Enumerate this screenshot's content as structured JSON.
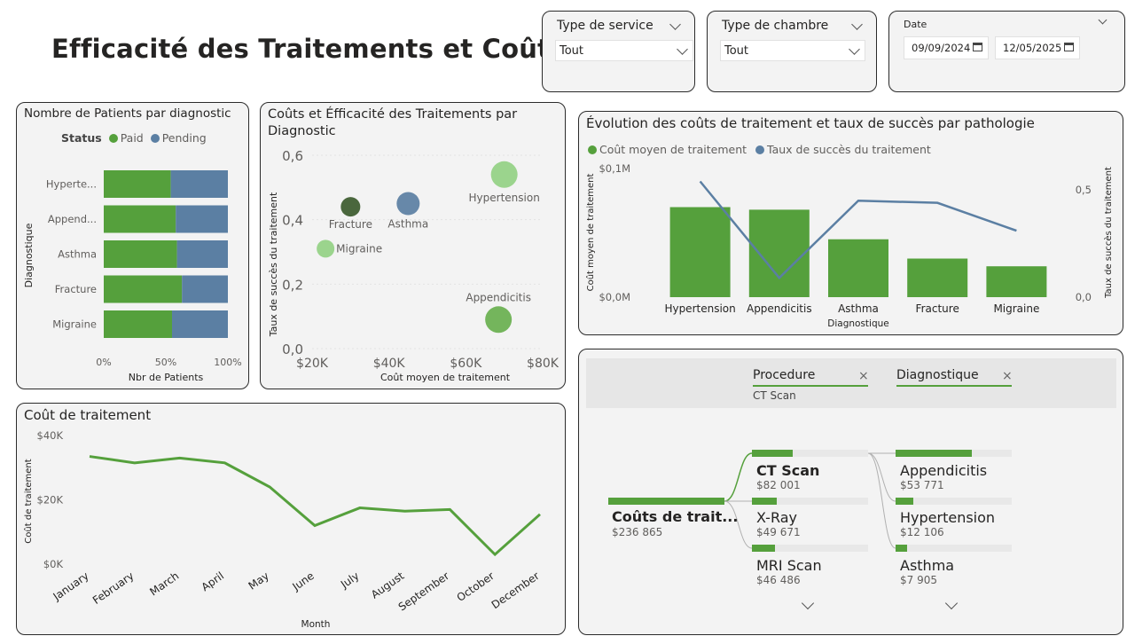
{
  "page": {
    "title": "Efficacité des Traitements et Coûts"
  },
  "filters": {
    "service": {
      "label": "Type de service",
      "value": "Tout"
    },
    "chambre": {
      "label": "Type de chambre",
      "value": "Tout"
    },
    "date": {
      "label": "Date",
      "start": "09/09/2024",
      "end": "12/05/2025"
    }
  },
  "colors": {
    "green": "#55a03c",
    "blue": "#5b7fa3",
    "dark_green": "#3c5b2e",
    "light_green": "#94d184",
    "mid_green": "#69b04f"
  },
  "chart_data": [
    {
      "id": "patients",
      "type": "bar",
      "orientation": "horizontal",
      "stacked": "100%",
      "title": "Nombre de Patients par diagnostic",
      "legend_title": "Status",
      "categories": [
        "Hyperte...",
        "Append...",
        "Asthma",
        "Fracture",
        "Migraine"
      ],
      "series": [
        {
          "name": "Paid",
          "values": [
            0.54,
            0.58,
            0.59,
            0.63,
            0.55
          ]
        },
        {
          "name": "Pending",
          "values": [
            0.46,
            0.42,
            0.41,
            0.37,
            0.45
          ]
        }
      ],
      "xlabel": "Nbr de Patients",
      "ylabel": "Diagnostique",
      "xticks": [
        "0%",
        "50%",
        "100%"
      ]
    },
    {
      "id": "scatter",
      "type": "scatter",
      "title": "Coûts et Éfficacité des Traitements par Diagnostic",
      "points": [
        {
          "label": "Fracture",
          "x": 30000,
          "y": 0.44,
          "color": "#3c5b2e"
        },
        {
          "label": "Asthma",
          "x": 45000,
          "y": 0.45,
          "color": "#5b7fa3"
        },
        {
          "label": "Hypertension",
          "x": 70000,
          "y": 0.54,
          "color": "#94d184"
        },
        {
          "label": "Migraine",
          "x": 23500,
          "y": 0.31,
          "color": "#94d184"
        },
        {
          "label": "Appendicitis",
          "x": 68500,
          "y": 0.09,
          "color": "#69b04f"
        }
      ],
      "xlabel": "Coût moyen de traitement",
      "ylabel": "Taux de succès du traitement",
      "xlim": [
        20000,
        80000
      ],
      "ylim": [
        0,
        0.6
      ],
      "xticks": [
        "$20K",
        "$40K",
        "$60K",
        "$80K"
      ],
      "yticks": [
        "0,0",
        "0,2",
        "0,4",
        "0,6"
      ]
    },
    {
      "id": "combo",
      "type": "bar",
      "title": "Évolution des coûts de traitement et taux de succès par pathologie",
      "categories": [
        "Hypertension",
        "Appendicitis",
        "Asthma",
        "Fracture",
        "Migraine"
      ],
      "series": [
        {
          "name": "Coût moyen de traitement",
          "kind": "bar",
          "values": [
            70000,
            68000,
            45000,
            30000,
            24000
          ]
        },
        {
          "name": "Taux de succès du traitement",
          "kind": "line",
          "values": [
            0.54,
            0.09,
            0.45,
            0.44,
            0.31
          ]
        }
      ],
      "xlabel": "Diagnostique",
      "ylabel": "Coût moyen de traitement",
      "y2label": "Taux de succès du traitement",
      "ylim": [
        0,
        100000
      ],
      "y2lim": [
        0,
        0.6
      ],
      "yticks": [
        "$0,0M",
        "$0,1M"
      ],
      "y2ticks": [
        "0,0",
        "0,5"
      ]
    },
    {
      "id": "monthly",
      "type": "line",
      "title": "Coût de traitement",
      "categories": [
        "January",
        "February",
        "March",
        "April",
        "May",
        "June",
        "July",
        "August",
        "September",
        "October",
        "December"
      ],
      "values": [
        33500,
        31500,
        33000,
        31500,
        24000,
        12000,
        17500,
        16500,
        17000,
        3000,
        15500
      ],
      "xlabel": "Month",
      "ylabel": "Coût de traitement",
      "ylim": [
        0,
        40000
      ],
      "yticks": [
        "$0K",
        "$20K",
        "$40K"
      ]
    }
  ],
  "decomp": {
    "levels": [
      {
        "label": "Procedure",
        "selected": "CT Scan"
      },
      {
        "label": "Diagnostique",
        "selected": ""
      }
    ],
    "root": {
      "name": "Coûts de trait...",
      "value": "$236 865",
      "ratio": 1.0
    },
    "level1": [
      {
        "name": "CT Scan",
        "value": "$82 001",
        "ratio": 0.35
      },
      {
        "name": "X-Ray",
        "value": "$49 671",
        "ratio": 0.21
      },
      {
        "name": "MRI Scan",
        "value": "$46 486",
        "ratio": 0.2
      }
    ],
    "level2": [
      {
        "name": "Appendicitis",
        "value": "$53 771",
        "ratio": 0.66
      },
      {
        "name": "Hypertension",
        "value": "$12 106",
        "ratio": 0.15
      },
      {
        "name": "Asthma",
        "value": "$7 905",
        "ratio": 0.1
      }
    ]
  }
}
